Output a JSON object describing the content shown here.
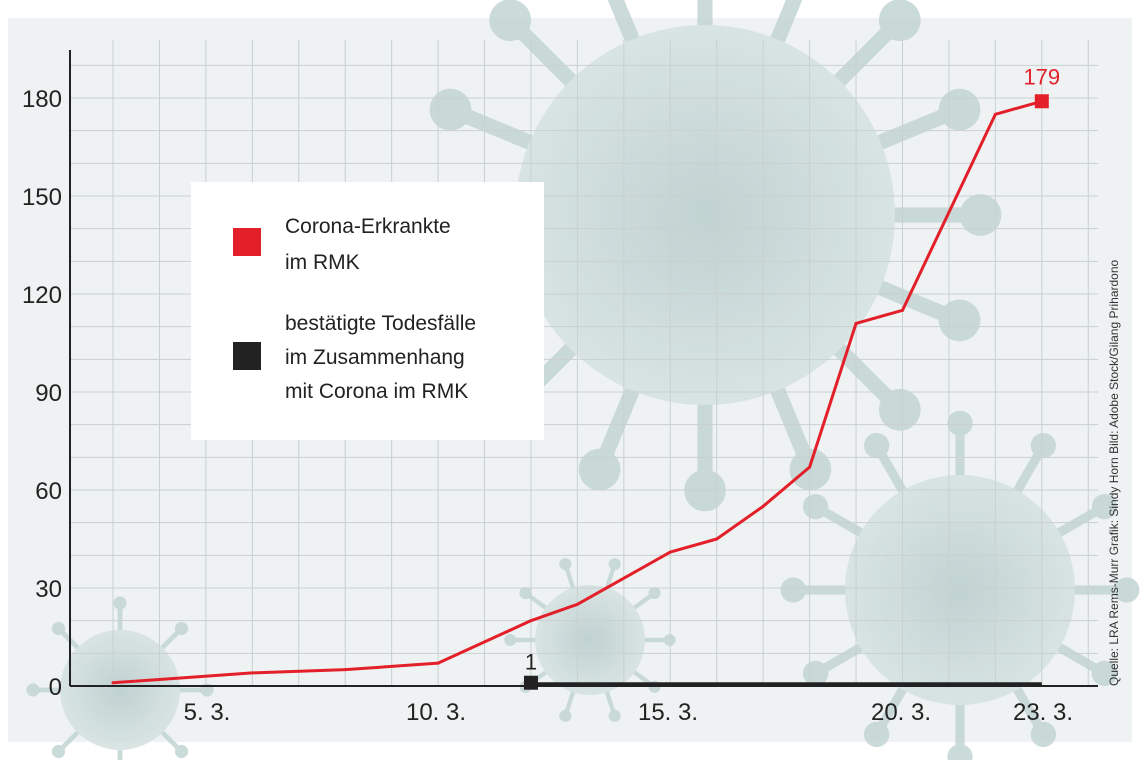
{
  "chart_data": {
    "type": "line",
    "x_tick_labels": [
      "5. 3.",
      "10. 3.",
      "15. 3.",
      "20. 3.",
      "23. 3."
    ],
    "y_ticks": [
      0,
      30,
      60,
      90,
      120,
      150,
      180
    ],
    "ylim": [
      0,
      190
    ],
    "grid": true,
    "legend_position": "upper-left",
    "series": [
      {
        "name": "Corona-Erkrankte im RMK",
        "color": "#e3202a",
        "points": [
          {
            "x": "2020-03-03",
            "y": 1
          },
          {
            "x": "2020-03-04",
            "y": 2
          },
          {
            "x": "2020-03-06",
            "y": 4
          },
          {
            "x": "2020-03-08",
            "y": 5
          },
          {
            "x": "2020-03-10",
            "y": 7
          },
          {
            "x": "2020-03-12",
            "y": 20
          },
          {
            "x": "2020-03-13",
            "y": 25
          },
          {
            "x": "2020-03-15",
            "y": 41
          },
          {
            "x": "2020-03-16",
            "y": 45
          },
          {
            "x": "2020-03-17",
            "y": 55
          },
          {
            "x": "2020-03-18",
            "y": 67
          },
          {
            "x": "2020-03-19",
            "y": 111
          },
          {
            "x": "2020-03-20",
            "y": 115
          },
          {
            "x": "2020-03-22",
            "y": 175
          },
          {
            "x": "2020-03-23",
            "y": 179
          }
        ]
      },
      {
        "name": "bestätigte Todesfälle im Zusammenhang mit Corona im RMK",
        "color": "#222222",
        "points": [
          {
            "x": "2020-03-12",
            "y": 1
          },
          {
            "x": "2020-03-23",
            "y": 1
          }
        ]
      }
    ],
    "annotations": {
      "cases_end_label": "179",
      "deaths_start_label": "1"
    },
    "legend": [
      {
        "lines": [
          "Corona-Erkrankte",
          "im RMK"
        ],
        "color": "#e3202a"
      },
      {
        "lines": [
          "bestätigte Todesfälle",
          "im Zusammenhang",
          "mit Corona  im RMK"
        ],
        "color": "#222222"
      }
    ],
    "credit": "Quelle: LRA Rems-Murr    Grafik: Sindy Horn    Bild: Adobe Stock/Gilang Prihardono"
  }
}
